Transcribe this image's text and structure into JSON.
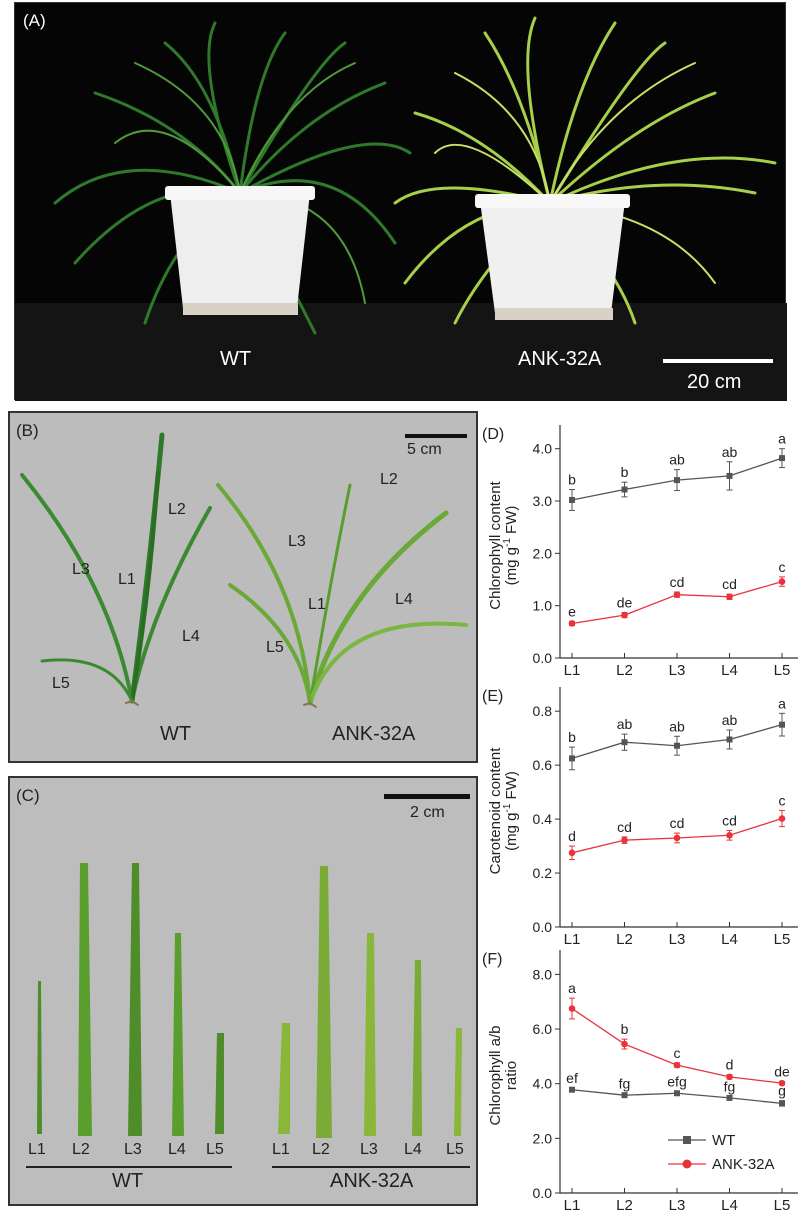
{
  "panel_a": {
    "tag": "(A)",
    "label_left": "WT",
    "label_right": "ANK-32A",
    "scale": "20 cm"
  },
  "panel_b": {
    "tag": "(B)",
    "scale": "5 cm",
    "wt_leaves": [
      "L1",
      "L2",
      "L3",
      "L4",
      "L5"
    ],
    "mut_leaves": [
      "L1",
      "L2",
      "L3",
      "L4",
      "L5"
    ],
    "wt_label": "WT",
    "mut_label": "ANK-32A"
  },
  "panel_c": {
    "tag": "(C)",
    "scale": "2 cm",
    "wt_leaves": [
      "L1",
      "L2",
      "L3",
      "L4",
      "L5"
    ],
    "mut_leaves": [
      "L1",
      "L2",
      "L3",
      "L4",
      "L5"
    ],
    "wt_label": "WT",
    "mut_label": "ANK-32A"
  },
  "colors": {
    "wt": "#555555",
    "mut": "#e8333b",
    "leaf": "#5a9e2e",
    "leaf_light": "#b9d86a"
  },
  "chart_data": [
    {
      "type": "line",
      "tag": "(D)",
      "ylabel_line1": "Chlorophyll content",
      "ylabel_line2": "(mg g",
      "ylabel_sup": "-1",
      "ylabel_line2_end": " FW)",
      "categories": [
        "L1",
        "L2",
        "L3",
        "L4",
        "L5"
      ],
      "ylim": [
        0,
        4.3
      ],
      "yticks": [
        "0.0",
        "1.0",
        "2.0",
        "3.0",
        "4.0"
      ],
      "series": [
        {
          "name": "WT",
          "values": [
            3.02,
            3.22,
            3.4,
            3.48,
            3.82
          ],
          "errors": [
            0.2,
            0.14,
            0.2,
            0.27,
            0.18
          ],
          "letters": [
            "b",
            "b",
            "ab",
            "ab",
            "a"
          ]
        },
        {
          "name": "ANK-32A",
          "values": [
            0.66,
            0.82,
            1.21,
            1.17,
            1.46
          ],
          "errors": [
            0.04,
            0.05,
            0.05,
            0.05,
            0.09
          ],
          "letters": [
            "e",
            "de",
            "cd",
            "cd",
            "c"
          ]
        }
      ]
    },
    {
      "type": "line",
      "tag": "(E)",
      "ylabel_line1": "Carotenoid content",
      "ylabel_line2": "(mg g",
      "ylabel_sup": "-1",
      "ylabel_line2_end": " FW)",
      "categories": [
        "L1",
        "L2",
        "L3",
        "L4",
        "L5"
      ],
      "ylim": [
        0,
        0.86
      ],
      "yticks": [
        "0.0",
        "0.2",
        "0.4",
        "0.6",
        "0.8"
      ],
      "series": [
        {
          "name": "WT",
          "values": [
            0.625,
            0.685,
            0.672,
            0.695,
            0.75
          ],
          "errors": [
            0.042,
            0.03,
            0.035,
            0.035,
            0.042
          ],
          "letters": [
            "b",
            "ab",
            "ab",
            "ab",
            "a"
          ]
        },
        {
          "name": "ANK-32A",
          "values": [
            0.275,
            0.322,
            0.33,
            0.34,
            0.402
          ],
          "errors": [
            0.025,
            0.012,
            0.018,
            0.018,
            0.03
          ],
          "letters": [
            "d",
            "cd",
            "cd",
            "cd",
            "c"
          ]
        }
      ]
    },
    {
      "type": "line",
      "tag": "(F)",
      "ylabel_line1": "Chlorophyll a/b",
      "ylabel_line2": "ratio",
      "categories": [
        "L1",
        "L2",
        "L3",
        "L4",
        "L5"
      ],
      "ylim": [
        0,
        8.6
      ],
      "yticks": [
        "0.0",
        "2.0",
        "4.0",
        "6.0",
        "8.0"
      ],
      "legend": [
        "WT",
        "ANK-32A"
      ],
      "series": [
        {
          "name": "WT",
          "values": [
            3.78,
            3.58,
            3.65,
            3.48,
            3.28
          ],
          "errors": [
            0.06,
            0.06,
            0.06,
            0.06,
            0.1
          ],
          "letters": [
            "ef",
            "fg",
            "efg",
            "fg",
            "g"
          ]
        },
        {
          "name": "ANK-32A",
          "values": [
            6.75,
            5.45,
            4.68,
            4.25,
            4.02
          ],
          "errors": [
            0.38,
            0.18,
            0.08,
            0.08,
            0.06
          ],
          "letters": [
            "a",
            "b",
            "c",
            "d",
            "de"
          ]
        }
      ]
    }
  ]
}
